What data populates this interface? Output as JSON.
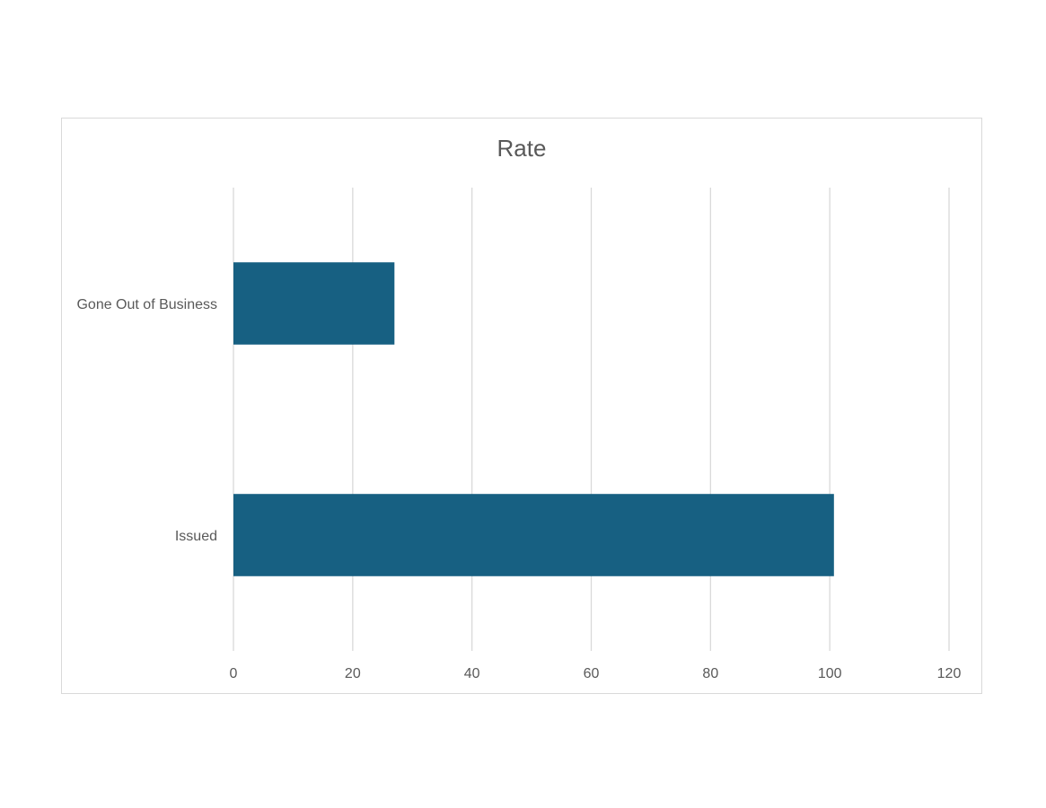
{
  "chart_data": {
    "type": "bar",
    "orientation": "horizontal",
    "title": "Rate",
    "categories": [
      "Gone Out of Business",
      "Issued"
    ],
    "values": [
      27,
      100.7
    ],
    "xlim": [
      0,
      120
    ],
    "x_ticks": [
      0,
      20,
      40,
      60,
      80,
      100,
      120
    ],
    "x_tick_labels": [
      "0",
      "20",
      "40",
      "60",
      "80",
      "100",
      "120"
    ],
    "xlabel": "",
    "ylabel": "",
    "grid": "vertical",
    "legend": "none",
    "colors": {
      "bar": "#176082",
      "grid": "#d9d9d9",
      "text": "#595959",
      "frame": "#d9d9d9"
    }
  }
}
